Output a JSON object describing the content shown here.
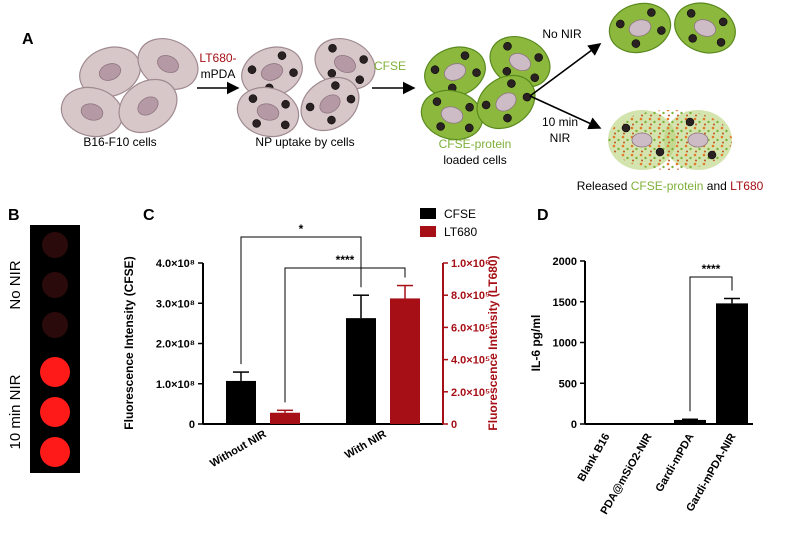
{
  "panel_a": {
    "label": "A",
    "step1": {
      "line1": "LT680-",
      "line2": "mPDA"
    },
    "step2": "CFSE",
    "cells1": "B16-F10 cells",
    "cells2": "NP uptake by cells",
    "cells3": {
      "line1": "CFSE-protein",
      "line2": "loaded cells"
    },
    "branch1": "No NIR",
    "branch2": {
      "line1": "10 min",
      "line2": "NIR"
    },
    "released": {
      "prefix": "Released",
      "protein": "CFSE-protein",
      "and": "and",
      "dye": "LT680"
    }
  },
  "panel_b": {
    "label": "B",
    "rows": [
      "No NIR",
      "10 min NIR"
    ]
  },
  "chart_data": [
    {
      "type": "bar",
      "label": "C",
      "categories": [
        "Without NIR",
        "With NIR"
      ],
      "series": [
        {
          "name": "CFSE",
          "color": "#000000",
          "values": [
            107000000,
            263000000
          ],
          "errors": [
            22000000,
            57000000
          ]
        },
        {
          "name": "LT680",
          "color": "#a50f15",
          "axis": "y2",
          "values": [
            70000,
            780000
          ],
          "errors": [
            15000,
            80000
          ]
        }
      ],
      "ylabel": "Fluorescence Intensity (CFSE)",
      "y2label": "Fluorescence Intensity (LT680)",
      "ylim": [
        0,
        400000000
      ],
      "yticks": [
        0,
        {
          "value": 100000000,
          "label": "1.0×10⁸"
        },
        {
          "value": 200000000,
          "label": "2.0×10⁸"
        },
        {
          "value": 300000000,
          "label": "3.0×10⁸"
        },
        {
          "value": 400000000,
          "label": "4.0×10⁸"
        }
      ],
      "y2lim": [
        0,
        1000000
      ],
      "y2ticks": [
        0,
        {
          "value": 200000,
          "label": "2.0×10⁵"
        },
        {
          "value": 400000,
          "label": "4.0×10⁵"
        },
        {
          "value": 600000,
          "label": "6.0×10⁵"
        },
        {
          "value": 800000,
          "label": "8.0×10⁵"
        },
        {
          "value": 1000000,
          "label": "1.0×10⁶"
        }
      ],
      "annotations": [
        "*",
        "****"
      ],
      "legend": "upper right"
    },
    {
      "type": "bar",
      "label": "D",
      "categories": [
        "Blank B16",
        "PDA@mSiO2-NIR",
        "Gardi-mPDA",
        "Gardi-mPDA-NIR"
      ],
      "values": [
        0,
        0,
        50,
        1480
      ],
      "errors": [
        0,
        0,
        8,
        60
      ],
      "color": "#000000",
      "ylabel": "IL-6 pg/ml",
      "ylim": [
        0,
        2000
      ],
      "yticks": [
        0,
        500,
        1000,
        1500,
        2000
      ],
      "annotations": [
        "****"
      ]
    }
  ]
}
